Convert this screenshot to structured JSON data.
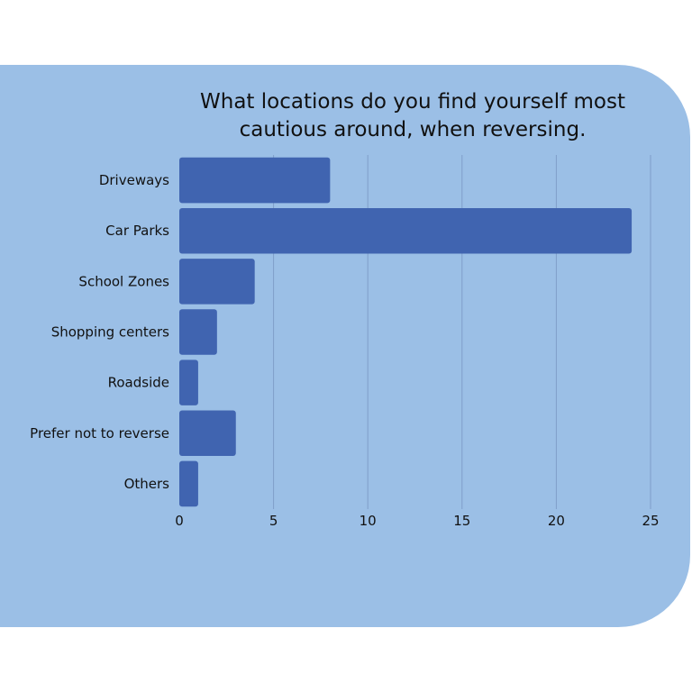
{
  "chart_data": {
    "type": "bar",
    "orientation": "horizontal",
    "title": "What locations do you find yourself most cautious around, when reversing.",
    "title_lines": [
      "What locations do you find yourself most",
      "cautious around, when reversing."
    ],
    "categories": [
      "Driveways",
      "Car Parks",
      "School Zones",
      "Shopping centers",
      "Roadside",
      "Prefer not to reverse",
      "Others"
    ],
    "values": [
      8,
      24,
      4,
      2,
      1,
      3,
      1
    ],
    "xlim": [
      0,
      25
    ],
    "xticks": [
      0,
      5,
      10,
      15,
      20,
      25
    ],
    "xlabel": "",
    "ylabel": "",
    "grid": "vertical",
    "legend": "none",
    "colors": {
      "bar": "#4064b0",
      "background": "#9bbfe6",
      "grid": "#7f9ec9"
    }
  }
}
